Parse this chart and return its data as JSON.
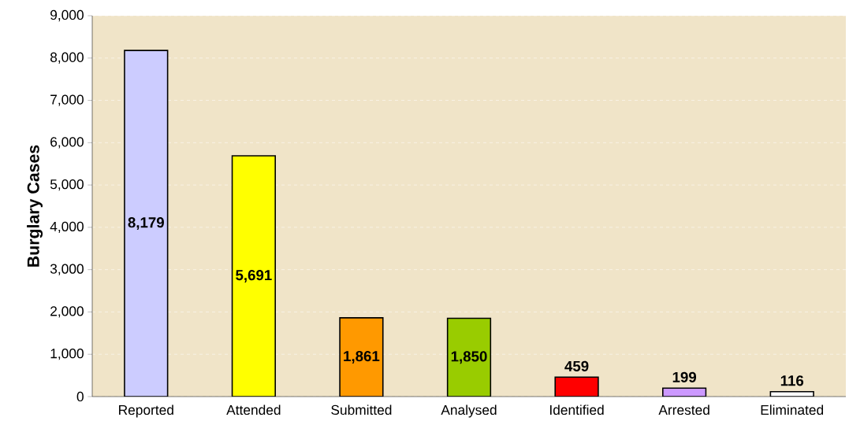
{
  "chart_data": {
    "type": "bar",
    "ylabel": "Burglary Cases",
    "categories": [
      "Reported",
      "Attended",
      "Submitted",
      "Analysed",
      "Identified",
      "Arrested",
      "Eliminated"
    ],
    "values": [
      8179,
      5691,
      1861,
      1850,
      459,
      199,
      116
    ],
    "colors": [
      "#ccccff",
      "#ffff00",
      "#ff9900",
      "#99cc00",
      "#ff0000",
      "#cc99ff",
      "#ffffff"
    ],
    "value_labels": [
      "8,179",
      "5,691",
      "1,861",
      "1,850",
      "459",
      "199",
      "116"
    ],
    "ylim": [
      0,
      9000
    ],
    "yticks": [
      0,
      {
        "value": 1000,
        "label": "1,000"
      },
      {
        "value": 2000,
        "label": "2,000"
      },
      {
        "value": 3000,
        "label": "3,000"
      },
      {
        "value": 4000,
        "label": "4,000"
      },
      {
        "value": 5000,
        "label": "5,000"
      },
      {
        "value": 6000,
        "label": "6,000"
      },
      {
        "value": 7000,
        "label": "7,000"
      },
      {
        "value": 8000,
        "label": "8,000"
      },
      {
        "value": 9000,
        "label": "9,000"
      }
    ],
    "grid": "y"
  }
}
